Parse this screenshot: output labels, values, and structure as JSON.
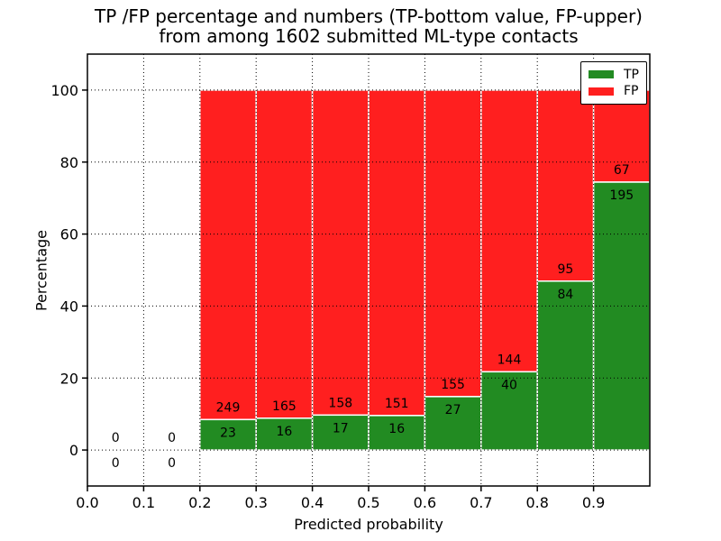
{
  "chart_data": {
    "type": "bar",
    "stacked": true,
    "title_line1": "TP /FP percentage and numbers (TP-bottom value, FP-upper)",
    "title_line2": "from among 1602 submitted ML-type contacts",
    "xlabel": "Predicted probability",
    "ylabel": "Percentage",
    "total_submitted": 1602,
    "xlim": [
      0.0,
      1.0
    ],
    "ylim": [
      -10,
      110
    ],
    "x_ticks": [
      {
        "value": 0.0,
        "label": "0.0"
      },
      {
        "value": 0.1,
        "label": "0.1"
      },
      {
        "value": 0.2,
        "label": "0.2"
      },
      {
        "value": 0.3,
        "label": "0.3"
      },
      {
        "value": 0.4,
        "label": "0.4"
      },
      {
        "value": 0.5,
        "label": "0.5"
      },
      {
        "value": 0.6,
        "label": "0.6"
      },
      {
        "value": 0.7,
        "label": "0.7"
      },
      {
        "value": 0.8,
        "label": "0.8"
      },
      {
        "value": 0.9,
        "label": "0.9"
      }
    ],
    "y_ticks": [
      {
        "value": 0,
        "label": "0"
      },
      {
        "value": 20,
        "label": "20"
      },
      {
        "value": 40,
        "label": "40"
      },
      {
        "value": 60,
        "label": "60"
      },
      {
        "value": 80,
        "label": "80"
      },
      {
        "value": 100,
        "label": "100"
      }
    ],
    "grid": {
      "style": "dotted",
      "color": "#000000",
      "on": true
    },
    "legend": {
      "position": "upper-right",
      "items": [
        {
          "label": "TP",
          "color": "#228B22"
        },
        {
          "label": "FP",
          "color": "#FF1F1F"
        }
      ]
    },
    "bins": [
      {
        "range": [
          0.0,
          0.1
        ],
        "tp": 0,
        "fp": 0,
        "tp_pct": null,
        "fp_pct": null
      },
      {
        "range": [
          0.1,
          0.2
        ],
        "tp": 0,
        "fp": 0,
        "tp_pct": null,
        "fp_pct": null
      },
      {
        "range": [
          0.2,
          0.3
        ],
        "tp": 23,
        "fp": 249,
        "tp_pct": 8.46,
        "fp_pct": 91.54
      },
      {
        "range": [
          0.3,
          0.4
        ],
        "tp": 16,
        "fp": 165,
        "tp_pct": 8.84,
        "fp_pct": 91.16
      },
      {
        "range": [
          0.4,
          0.5
        ],
        "tp": 17,
        "fp": 158,
        "tp_pct": 9.71,
        "fp_pct": 90.29
      },
      {
        "range": [
          0.5,
          0.6
        ],
        "tp": 16,
        "fp": 151,
        "tp_pct": 9.58,
        "fp_pct": 90.42
      },
      {
        "range": [
          0.6,
          0.7
        ],
        "tp": 27,
        "fp": 155,
        "tp_pct": 14.84,
        "fp_pct": 85.16
      },
      {
        "range": [
          0.7,
          0.8
        ],
        "tp": 40,
        "fp": 144,
        "tp_pct": 21.74,
        "fp_pct": 78.26
      },
      {
        "range": [
          0.8,
          0.9
        ],
        "tp": 84,
        "fp": 95,
        "tp_pct": 46.93,
        "fp_pct": 53.07
      },
      {
        "range": [
          0.9,
          1.0
        ],
        "tp": 195,
        "fp": 67,
        "tp_pct": 74.43,
        "fp_pct": 25.57
      }
    ],
    "colors": {
      "tp_bar": "#228B22",
      "fp_bar": "#FF1F1F",
      "bar_edge": "#ffffff",
      "axis": "#000000",
      "text": "#000000"
    }
  }
}
